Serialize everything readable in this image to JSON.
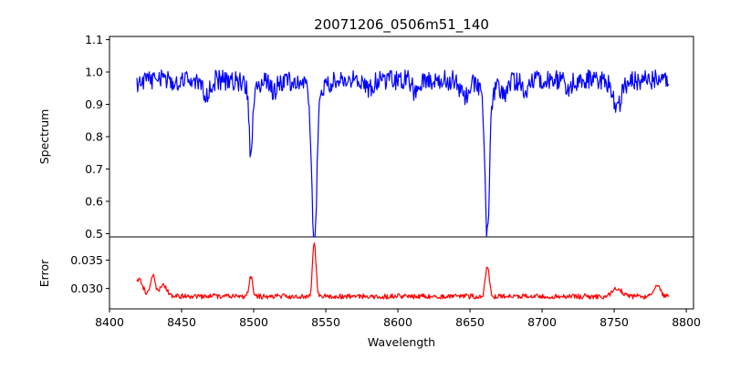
{
  "chart_data": {
    "type": "line",
    "title": "20071206_0506m51_140",
    "xlabel": "Wavelength",
    "xlim": [
      8400,
      8805
    ],
    "xticks": [
      8400,
      8450,
      8500,
      8550,
      8600,
      8650,
      8700,
      8750,
      8800
    ],
    "x_range": [
      8419,
      8788
    ],
    "panels": [
      {
        "id": "spectrum",
        "ylabel": "Spectrum",
        "ylim": [
          0.49,
          1.11
        ],
        "yticks": [
          "0.5",
          "0.6",
          "0.7",
          "0.8",
          "0.9",
          "1.0",
          "1.1"
        ],
        "series": [
          {
            "color": "#0000ff",
            "continuum": 0.975,
            "noise": 0.032,
            "features": [
              {
                "center": 8498,
                "depth": 0.19,
                "width": 1.3
              },
              {
                "center": 8542,
                "depth": 0.45,
                "width": 1.7
              },
              {
                "center": 8662,
                "depth": 0.41,
                "width": 1.5
              },
              {
                "center": 8420,
                "depth": 0.02,
                "width": 2.0
              },
              {
                "center": 8467,
                "depth": 0.04,
                "width": 2.5
              },
              {
                "center": 8514,
                "depth": 0.03,
                "width": 2.0
              },
              {
                "center": 8580,
                "depth": 0.03,
                "width": 2.0
              },
              {
                "center": 8612,
                "depth": 0.04,
                "width": 2.0
              },
              {
                "center": 8646,
                "depth": 0.05,
                "width": 2.5
              },
              {
                "center": 8674,
                "depth": 0.04,
                "width": 2.5
              },
              {
                "center": 8688,
                "depth": 0.03,
                "width": 2.0
              },
              {
                "center": 8718,
                "depth": 0.04,
                "width": 2.0
              },
              {
                "center": 8752,
                "depth": 0.09,
                "width": 3.0
              }
            ]
          }
        ]
      },
      {
        "id": "error",
        "ylabel": "Error",
        "ylim": [
          0.0264,
          0.0391
        ],
        "yticks": [
          "0.030",
          "0.035"
        ],
        "series": [
          {
            "color": "#ff0000",
            "baseline": 0.0286,
            "noise": 0.00045,
            "features": [
              {
                "center": 8498,
                "height": 0.0035,
                "width": 1.3
              },
              {
                "center": 8542,
                "height": 0.0095,
                "width": 1.2
              },
              {
                "center": 8662,
                "height": 0.0055,
                "width": 1.3
              },
              {
                "center": 8430,
                "height": 0.0035,
                "width": 1.5
              },
              {
                "center": 8420,
                "height": 0.003,
                "width": 3.0
              },
              {
                "center": 8437,
                "height": 0.0018,
                "width": 3.0
              },
              {
                "center": 8752,
                "height": 0.0015,
                "width": 3.0
              },
              {
                "center": 8780,
                "height": 0.002,
                "width": 2.0
              }
            ]
          }
        ]
      }
    ]
  }
}
